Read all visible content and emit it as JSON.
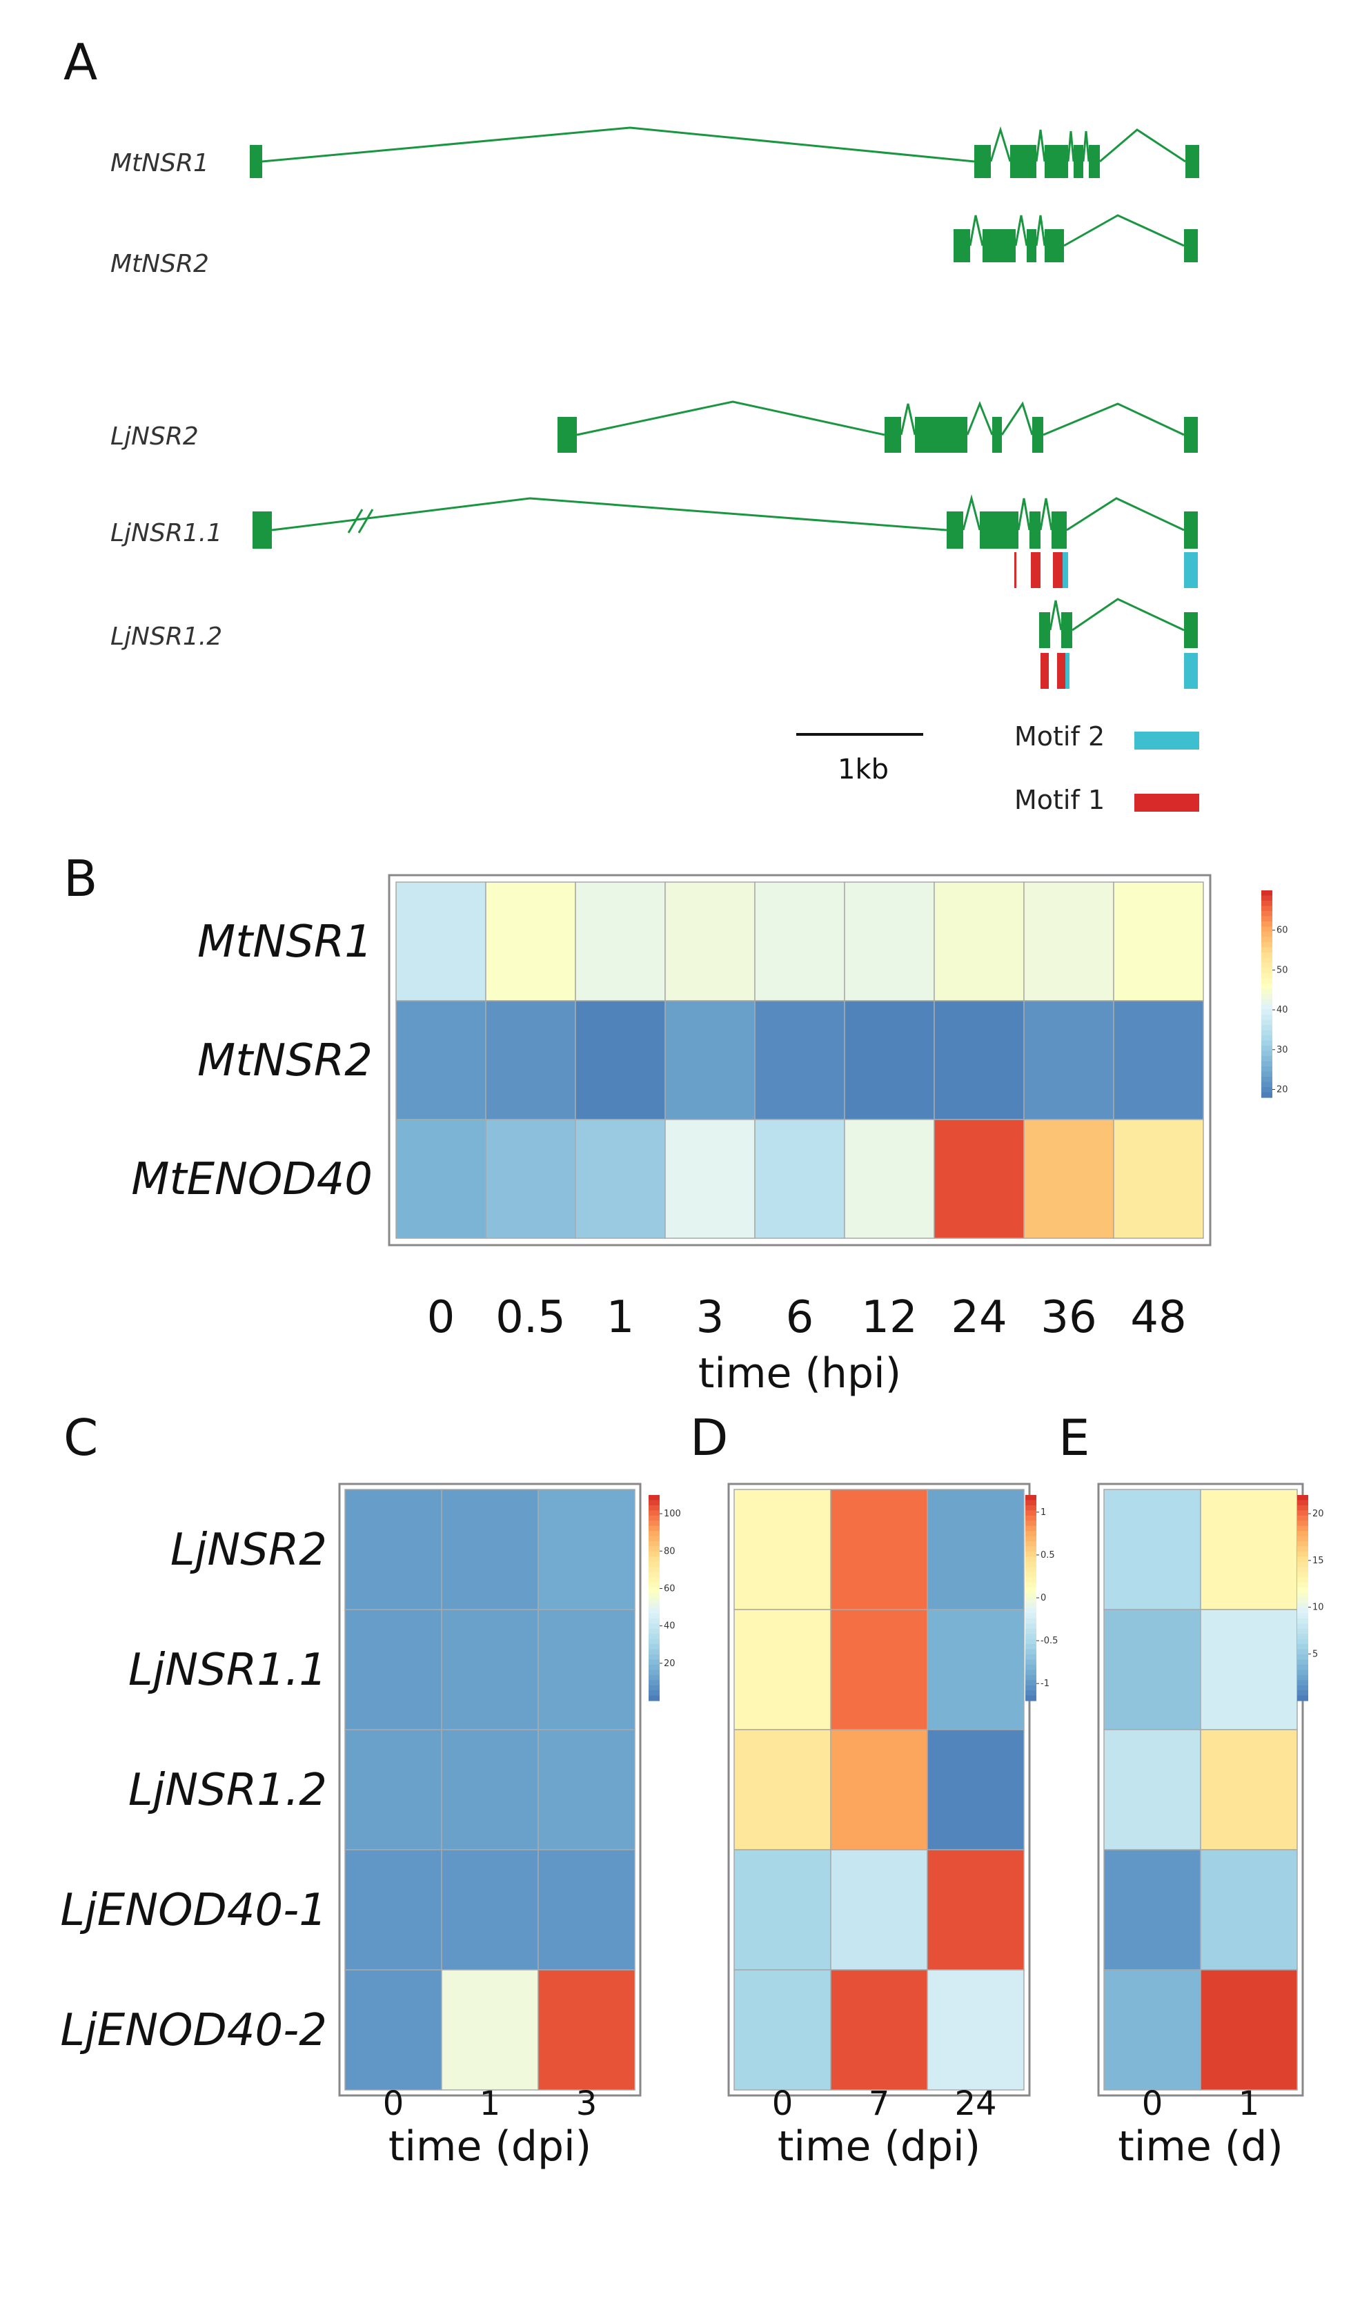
{
  "panels": {
    "A": {
      "letter": "A",
      "genes": [
        {
          "name": "MtNSR1",
          "color": "#1a9641"
        },
        {
          "name": "MtNSR2",
          "color": "#1a9641"
        },
        {
          "name": "LjNSR2",
          "color": "#1a9641"
        },
        {
          "name": "LjNSR1.1",
          "color": "#1a9641"
        },
        {
          "name": "LjNSR1.2",
          "color": "#1a9641"
        }
      ],
      "scale_bar_label": "1kb",
      "legend": [
        {
          "label": "Motif 2",
          "color": "#3ebfcf"
        },
        {
          "label": "Motif 1",
          "color": "#d92a2a"
        }
      ]
    },
    "B": {
      "letter": "B"
    },
    "C": {
      "letter": "C"
    },
    "D": {
      "letter": "D"
    },
    "E": {
      "letter": "E"
    }
  },
  "chart_data": [
    {
      "id": "B",
      "type": "heatmap",
      "rows": [
        "MtNSR1",
        "MtNSR2",
        "MtENOD40"
      ],
      "columns": [
        "0",
        "0.5",
        "1",
        "3",
        "6",
        "12",
        "24",
        "36",
        "48"
      ],
      "values": [
        [
          38,
          46,
          43,
          44,
          43,
          43,
          45,
          44,
          46
        ],
        [
          23,
          22,
          20,
          24,
          21,
          20,
          20,
          22,
          21
        ],
        [
          27,
          29,
          31,
          42,
          36,
          43,
          68,
          58,
          52
        ]
      ],
      "xlabel": "time (hpi)",
      "colorbar": {
        "min": 18,
        "max": 70,
        "ticks": [
          "60",
          "50",
          "40",
          "30",
          "20"
        ]
      }
    },
    {
      "id": "C",
      "type": "heatmap",
      "rows": [
        "LjNSR2",
        "LjNSR1.1",
        "LjNSR1.2",
        "LjENOD40-1",
        "LjENOD40-2"
      ],
      "columns": [
        "0",
        "1",
        "3"
      ],
      "values": [
        [
          12,
          12,
          16
        ],
        [
          12,
          13,
          14
        ],
        [
          13,
          13,
          14
        ],
        [
          10,
          10,
          10
        ],
        [
          10,
          55,
          105
        ]
      ],
      "xlabel": "time (dpi)",
      "colorbar": {
        "min": 0,
        "max": 110,
        "ticks": [
          "100",
          "80",
          "60",
          "40",
          "20"
        ]
      }
    },
    {
      "id": "D",
      "type": "heatmap",
      "rows": [
        "LjNSR2",
        "LjNSR1.1",
        "LjNSR1.2",
        "LjENOD40-1",
        "LjENOD40-2"
      ],
      "columns": [
        "0",
        "7",
        "24"
      ],
      "values": [
        [
          0.2,
          1.0,
          -0.9
        ],
        [
          0.2,
          1.0,
          -0.8
        ],
        [
          0.4,
          0.8,
          -1.1
        ],
        [
          -0.5,
          -0.3,
          1.1
        ],
        [
          -0.5,
          1.1,
          -0.2
        ]
      ],
      "xlabel": "time (dpi)",
      "colorbar": {
        "min": -1.2,
        "max": 1.2,
        "ticks": [
          "1",
          "0.5",
          "0",
          "-0.5",
          "-1"
        ]
      }
    },
    {
      "id": "E",
      "type": "heatmap",
      "rows": [
        "LjNSR2",
        "LjNSR1.1",
        "LjNSR1.2",
        "LjENOD40-1",
        "LjENOD40-2"
      ],
      "columns": [
        "0",
        "1"
      ],
      "values": [
        [
          7,
          13
        ],
        [
          5,
          9
        ],
        [
          8,
          15
        ],
        [
          2,
          6
        ],
        [
          4,
          21.5
        ]
      ],
      "xlabel": "time (d)",
      "colorbar": {
        "min": 0,
        "max": 22,
        "ticks": [
          "20",
          "15",
          "10",
          "5"
        ]
      }
    }
  ]
}
